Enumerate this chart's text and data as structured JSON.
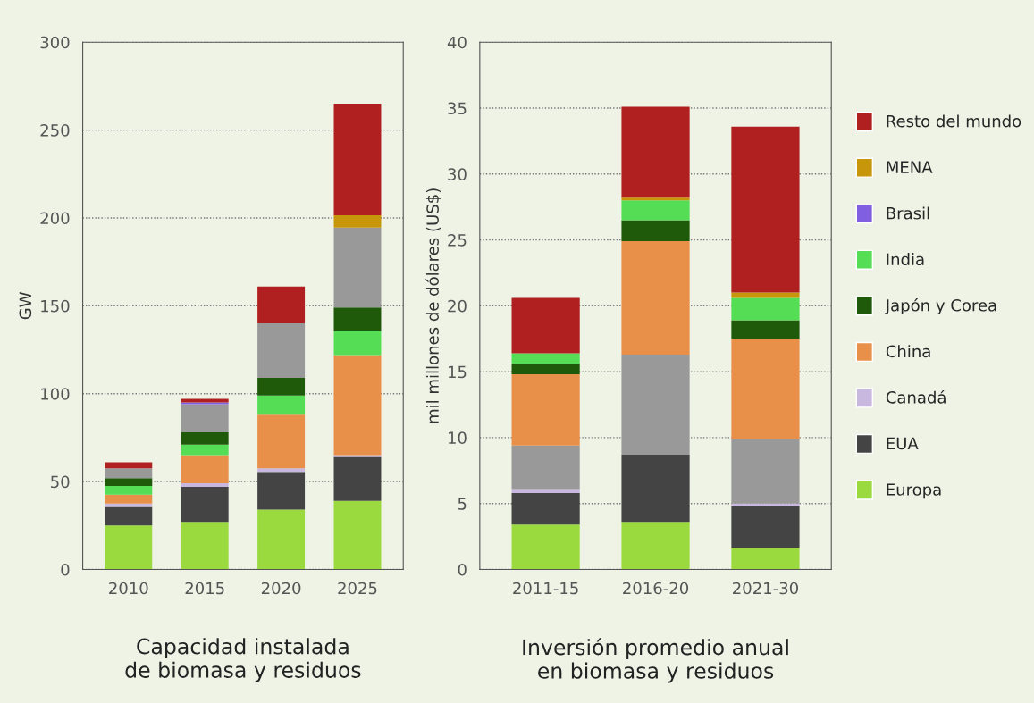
{
  "chart_data": [
    {
      "type": "bar",
      "stacked": true,
      "title": "Capacidad instalada\nde biomasa y residuos",
      "ylabel": "GW",
      "categories": [
        "2010",
        "2015",
        "2020",
        "2025"
      ],
      "ylim": [
        0,
        300
      ],
      "yticks": [
        0,
        50,
        100,
        150,
        200,
        250,
        300
      ],
      "grid": "y",
      "legend": false,
      "series": [
        {
          "color": "#9ada3e",
          "values": [
            25,
            27,
            34,
            39
          ]
        },
        {
          "color": "#444444",
          "values": [
            10.5,
            20,
            21.5,
            25
          ]
        },
        {
          "color": "#c8b8e0",
          "values": [
            2,
            2,
            2,
            1
          ]
        },
        {
          "color": "#e8904a",
          "values": [
            5,
            16,
            30.5,
            57
          ]
        },
        {
          "color": "#55dd55",
          "values": [
            5,
            6,
            11,
            13.5
          ]
        },
        {
          "color": "#1e5a0a",
          "values": [
            4.5,
            7,
            10,
            13.5
          ]
        },
        {
          "color": "#999999",
          "values": [
            5.5,
            16,
            31,
            45.5
          ]
        },
        {
          "color": "#8060e0",
          "values": [
            null,
            1,
            null,
            null
          ]
        },
        {
          "color": "#c8960a",
          "values": [
            null,
            null,
            null,
            7
          ]
        },
        {
          "color": "#b02020",
          "values": [
            3.5,
            2,
            21,
            63.5
          ]
        }
      ]
    },
    {
      "type": "bar",
      "stacked": true,
      "title": "Inversión promedio anual\nen biomasa y residuos",
      "ylabel": "mil millones de dólares (US$)",
      "categories": [
        "2011-15",
        "2016-20",
        "2021-30"
      ],
      "ylim": [
        0,
        40
      ],
      "yticks": [
        0,
        5,
        10,
        15,
        20,
        25,
        30,
        35,
        40
      ],
      "grid": "y",
      "legend": "right",
      "series": [
        {
          "name": "Europa",
          "color": "#9ada3e",
          "values": [
            3.4,
            3.6,
            1.6
          ]
        },
        {
          "name": "EUA",
          "color": "#444444",
          "values": [
            2.4,
            5.1,
            3.2
          ]
        },
        {
          "name": "Canadá",
          "color": "#c8b8e0",
          "values": [
            0.3,
            null,
            0.2
          ]
        },
        {
          "color": "#999999",
          "values": [
            3.3,
            7.6,
            4.9
          ]
        },
        {
          "name": "China",
          "color": "#e8904a",
          "values": [
            5.4,
            8.6,
            7.6
          ]
        },
        {
          "name": "Japón y Corea",
          "color": "#1e5a0a",
          "values": [
            0.8,
            1.6,
            1.4
          ]
        },
        {
          "name": "India",
          "color": "#55dd55",
          "values": [
            0.8,
            1.5,
            1.7
          ]
        },
        {
          "name": "Brasil",
          "color": "#8060e0",
          "values": [
            null,
            null,
            null
          ]
        },
        {
          "name": "MENA",
          "color": "#c8960a",
          "values": [
            null,
            0.2,
            0.4
          ]
        },
        {
          "name": "Resto del mundo",
          "color": "#b02020",
          "values": [
            4.2,
            6.9,
            12.6
          ]
        }
      ]
    }
  ]
}
